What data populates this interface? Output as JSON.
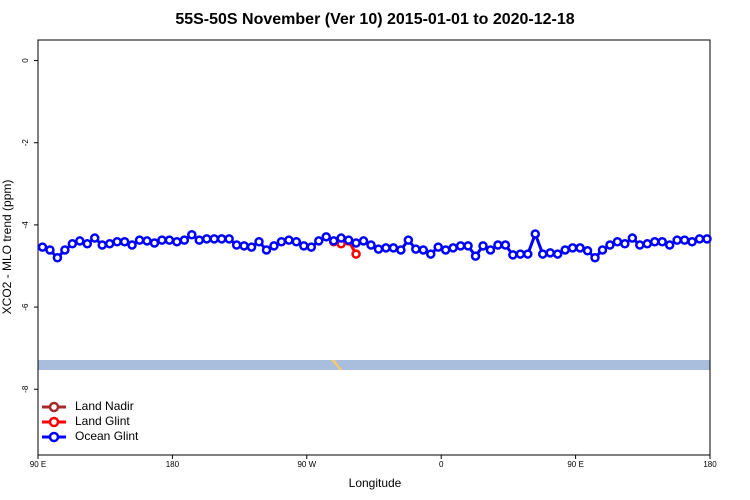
{
  "chart_data": {
    "type": "line",
    "title": "55S-50S November (Ver 10)   2015-01-01 to 2020-12-18",
    "x_label": "Longitude",
    "y_label": "XCO2 - MLO trend (ppm)",
    "xlim": [
      90,
      540
    ],
    "xticks": [
      {
        "value": 90,
        "label": "90 E"
      },
      {
        "value": 180,
        "label": "180"
      },
      {
        "value": 270,
        "label": "90 W"
      },
      {
        "value": 360,
        "label": "0"
      },
      {
        "value": 450,
        "label": "90 E"
      },
      {
        "value": 540,
        "label": "180"
      }
    ],
    "ylim": [
      -9.6,
      0.5
    ],
    "yticks": [
      0,
      -2,
      -4,
      -6,
      -8
    ],
    "legend": "bottom-left",
    "series": [
      {
        "name": "Land Nadir",
        "color": "#a52a2a",
        "x": [],
        "values": []
      },
      {
        "name": "Land Glint",
        "color": "#ff0000",
        "x": [
          288,
          293,
          298,
          303
        ],
        "values": [
          -4.41,
          -4.46,
          -4.39,
          -4.71
        ]
      },
      {
        "name": "Ocean Glint",
        "color": "#0000ff",
        "x": [
          93,
          98,
          103,
          108,
          113,
          118,
          123,
          128,
          133,
          138,
          143,
          148,
          153,
          158,
          163,
          168,
          173,
          178,
          183,
          188,
          193,
          198,
          203,
          208,
          213,
          218,
          223,
          228,
          233,
          238,
          243,
          248,
          253,
          258,
          263,
          268,
          273,
          278,
          283,
          288,
          293,
          298,
          303,
          308,
          313,
          318,
          323,
          328,
          333,
          338,
          343,
          348,
          353,
          358,
          363,
          368,
          373,
          378,
          383,
          388,
          393,
          398,
          403,
          408,
          413,
          418,
          423,
          428,
          433,
          438,
          443,
          448,
          453,
          458,
          463,
          468,
          473,
          478,
          483,
          488,
          493,
          498,
          503,
          508,
          513,
          518,
          523,
          528,
          533,
          538
        ],
        "values": [
          -4.54,
          -4.61,
          -4.8,
          -4.61,
          -4.46,
          -4.39,
          -4.46,
          -4.32,
          -4.49,
          -4.46,
          -4.41,
          -4.41,
          -4.49,
          -4.37,
          -4.39,
          -4.44,
          -4.37,
          -4.37,
          -4.41,
          -4.37,
          -4.24,
          -4.37,
          -4.34,
          -4.34,
          -4.34,
          -4.34,
          -4.49,
          -4.51,
          -4.54,
          -4.41,
          -4.61,
          -4.51,
          -4.41,
          -4.37,
          -4.41,
          -4.51,
          -4.54,
          -4.39,
          -4.29,
          -4.39,
          -4.32,
          -4.37,
          -4.44,
          -4.39,
          -4.49,
          -4.59,
          -4.56,
          -4.56,
          -4.61,
          -4.37,
          -4.59,
          -4.61,
          -4.71,
          -4.54,
          -4.61,
          -4.56,
          -4.51,
          -4.51,
          -4.76,
          -4.51,
          -4.61,
          -4.49,
          -4.49,
          -4.73,
          -4.71,
          -4.71,
          -4.22,
          -4.71,
          -4.68,
          -4.71,
          -4.61,
          -4.56,
          -4.56,
          -4.63,
          -4.8,
          -4.61,
          -4.49,
          -4.41,
          -4.46,
          -4.32,
          -4.49,
          -4.46,
          -4.41,
          -4.41,
          -4.49,
          -4.37,
          -4.37,
          -4.41,
          -4.34,
          -4.34
        ]
      }
    ]
  }
}
